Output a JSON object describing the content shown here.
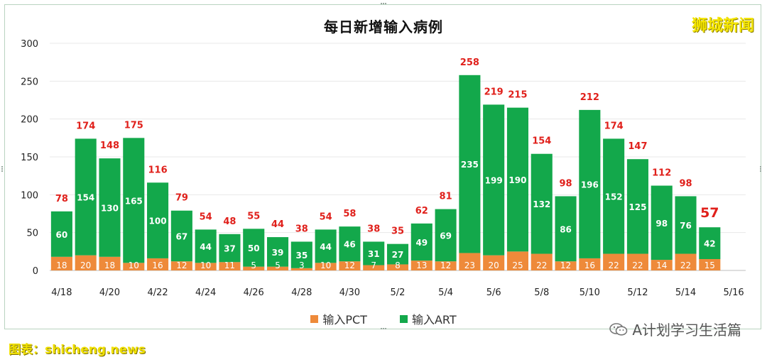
{
  "watermark": "狮城新闻",
  "source_text": "图表：shicheng.news",
  "wechat_text": "A计划学习生活篇",
  "colors": {
    "pct": "#ee8a3a",
    "art": "#13a84b",
    "total_label": "#e0201b"
  },
  "chart_data": {
    "type": "bar",
    "stacked": true,
    "title": "每日新增输入病例",
    "xlabel": "",
    "ylabel": "",
    "ylim": [
      0,
      300
    ],
    "yticks": [
      0,
      50,
      100,
      150,
      200,
      250,
      300
    ],
    "grid": true,
    "legend_position": "bottom",
    "categories": [
      "4/18",
      "4/19",
      "4/20",
      "4/21",
      "4/22",
      "4/23",
      "4/24",
      "4/25",
      "4/26",
      "4/27",
      "4/28",
      "4/29",
      "4/30",
      "5/1",
      "5/2",
      "5/3",
      "5/4",
      "5/5",
      "5/6",
      "5/7",
      "5/8",
      "5/9",
      "5/10",
      "5/11",
      "5/12",
      "5/13",
      "5/14",
      "5/15"
    ],
    "x_tick_labels": [
      "4/18",
      "4/20",
      "4/22",
      "4/24",
      "4/26",
      "4/28",
      "4/30",
      "5/2",
      "5/4",
      "5/6",
      "5/8",
      "5/10",
      "5/12",
      "5/14",
      "5/16"
    ],
    "series": [
      {
        "name": "输入PCT",
        "values": [
          18,
          20,
          18,
          10,
          16,
          12,
          10,
          11,
          5,
          5,
          3,
          10,
          12,
          7,
          8,
          13,
          12,
          23,
          20,
          25,
          22,
          12,
          16,
          22,
          22,
          14,
          22,
          15
        ]
      },
      {
        "name": "输入ART",
        "values": [
          60,
          154,
          130,
          165,
          100,
          67,
          44,
          37,
          50,
          39,
          35,
          44,
          46,
          31,
          27,
          49,
          69,
          235,
          199,
          190,
          132,
          86,
          196,
          152,
          125,
          98,
          76,
          42
        ]
      }
    ],
    "totals": [
      78,
      174,
      148,
      175,
      116,
      79,
      54,
      48,
      55,
      44,
      38,
      54,
      58,
      38,
      35,
      62,
      81,
      258,
      219,
      215,
      154,
      98,
      212,
      174,
      147,
      112,
      98,
      57
    ]
  }
}
